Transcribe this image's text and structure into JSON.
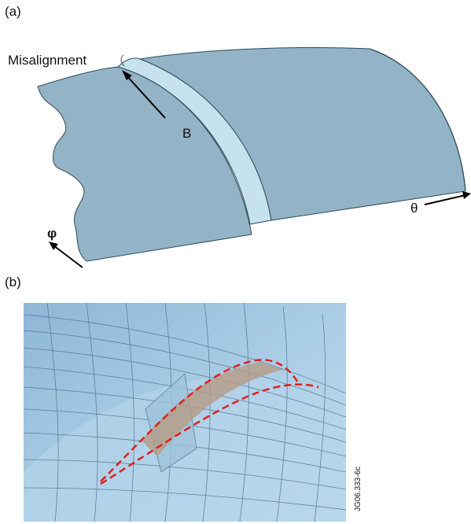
{
  "panel_a": {
    "label": "(a)",
    "misalignment": "Misalignment",
    "point": "B",
    "theta": "θ",
    "phi": "φ"
  },
  "panel_b": {
    "label": "(b)"
  },
  "figure_id": "JG06.333-6c"
}
